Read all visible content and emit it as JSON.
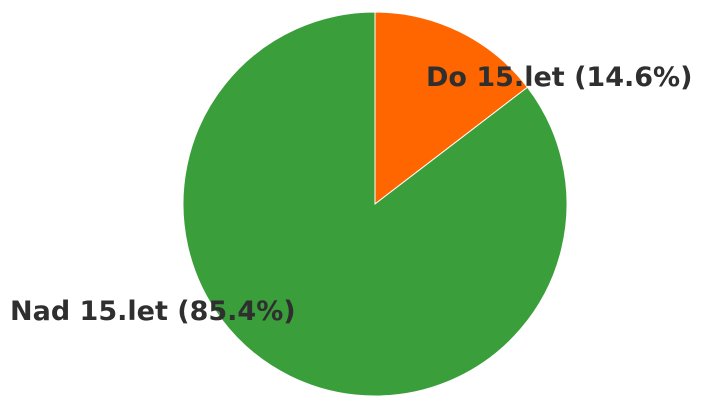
{
  "chart_data": {
    "type": "pie",
    "title": "",
    "slices": [
      {
        "label": "Do 15.let (14.6%)",
        "value": 14.6,
        "color": "#ff6600"
      },
      {
        "label": "Nad 15.let (85.4%)",
        "value": 85.4,
        "color": "#3a9e3a"
      }
    ]
  }
}
